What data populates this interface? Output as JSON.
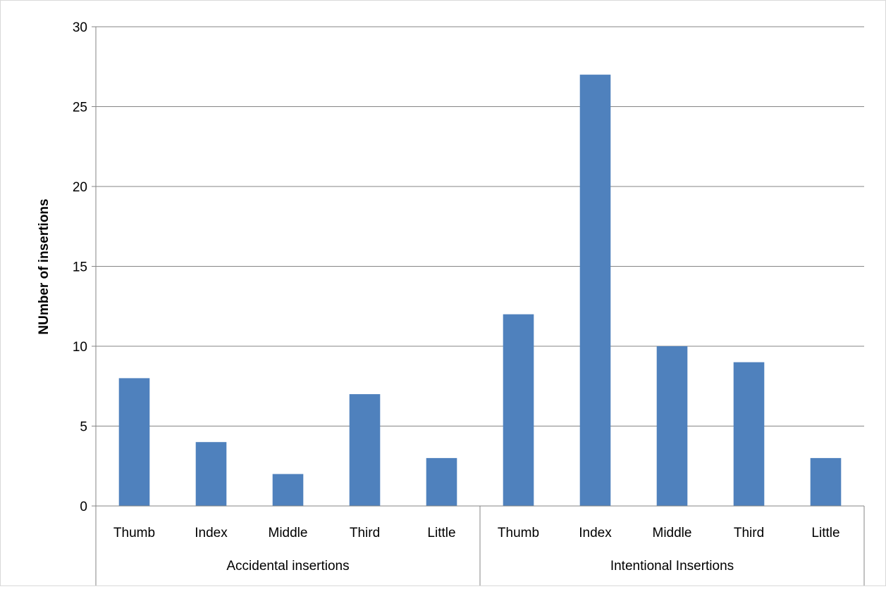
{
  "chart_data": {
    "type": "bar",
    "title": "",
    "ylabel": "NUmber of insertions",
    "ylim": [
      0,
      30
    ],
    "yticks": [
      "0",
      "5",
      "10",
      "15",
      "20",
      "25",
      "30"
    ],
    "grid": true,
    "legend": "none",
    "bar_color": "#4f81bd",
    "groups": [
      {
        "name": "Accidental insertions",
        "categories": [
          "Thumb",
          "Index",
          "Middle",
          "Third",
          "Little"
        ],
        "values": [
          8,
          4,
          2,
          7,
          3
        ]
      },
      {
        "name": "Intentional Insertions",
        "categories": [
          "Thumb",
          "Index",
          "Middle",
          "Third",
          "Little"
        ],
        "values": [
          12,
          27,
          10,
          9,
          3
        ]
      }
    ]
  }
}
